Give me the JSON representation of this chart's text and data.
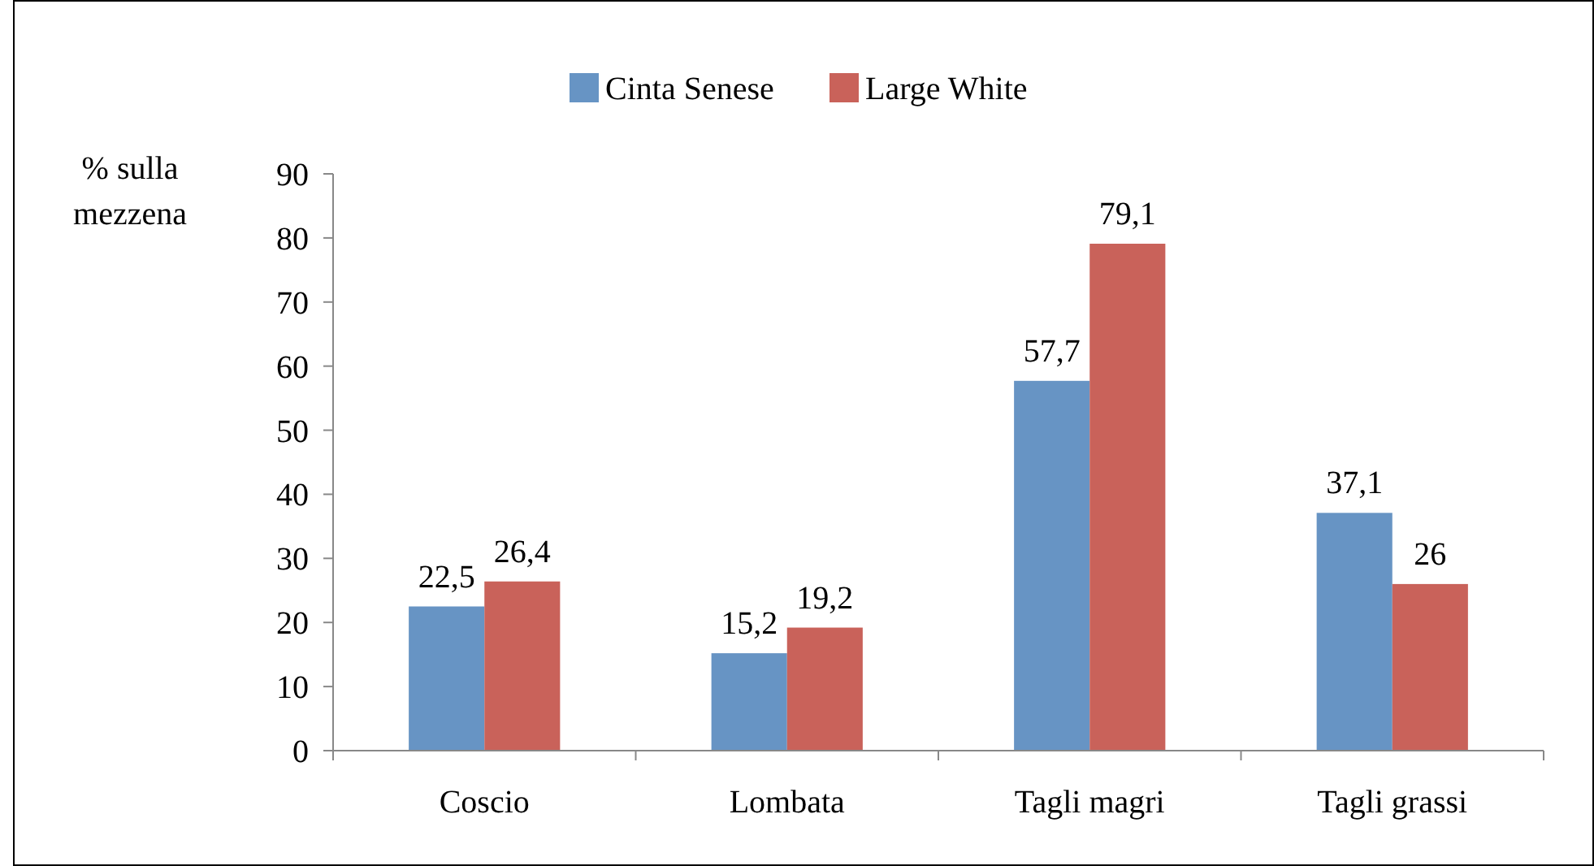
{
  "chart_data": {
    "type": "bar",
    "ylabel": "% sulla mezzena",
    "categories": [
      "Coscio",
      "Lombata",
      "Tagli magri",
      "Tagli grassi"
    ],
    "series": [
      {
        "name": "Cinta Senese",
        "color": "#6794c4",
        "values": [
          22.5,
          15.2,
          57.7,
          37.1
        ],
        "value_labels": [
          "22,5",
          "15,2",
          "57,7",
          "37,1"
        ]
      },
      {
        "name": "Large White",
        "color": "#c9625a",
        "values": [
          26.4,
          19.2,
          79.1,
          26
        ],
        "value_labels": [
          "26,4",
          "19,2",
          "79,1",
          "26"
        ]
      }
    ],
    "ylim": [
      0,
      90
    ],
    "yticks": [
      0,
      10,
      20,
      30,
      40,
      50,
      60,
      70,
      80,
      90
    ],
    "grid": false,
    "legend": "top"
  }
}
